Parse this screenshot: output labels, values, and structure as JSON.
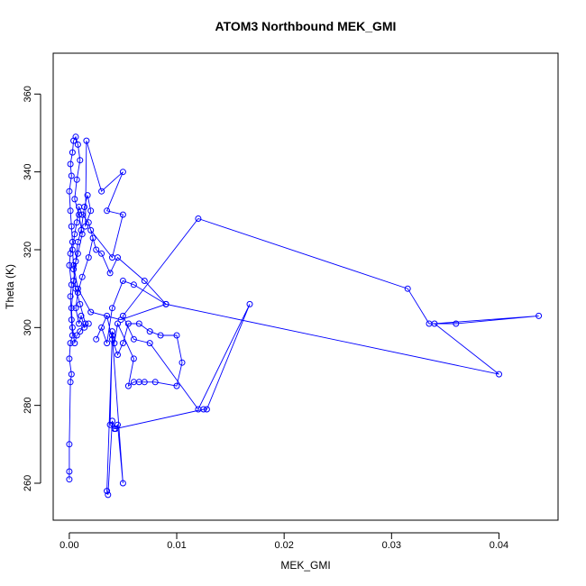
{
  "chart_data": {
    "type": "scatter",
    "title": "ATOM3 Northbound MEK_GMI",
    "xlabel": "MEK_GMI",
    "ylabel": "Theta (K)",
    "xlim": [
      -0.0015,
      0.0455
    ],
    "ylim": [
      250.5,
      370.5
    ],
    "x_ticks": [
      0.0,
      0.01,
      0.02,
      0.03,
      0.04
    ],
    "x_tick_labels": [
      "0.00",
      "0.01",
      "0.02",
      "0.03",
      "0.04"
    ],
    "y_ticks": [
      260,
      280,
      300,
      320,
      340,
      360
    ],
    "y_tick_labels": [
      "260",
      "280",
      "300",
      "320",
      "340",
      "360"
    ],
    "grid": false,
    "legend": "none",
    "marker": "open-circle",
    "connected": true,
    "color": "#0000ff",
    "series": [
      {
        "points": [
          [
            0.0,
            261
          ],
          [
            0.0,
            263
          ],
          [
            0.0,
            270
          ],
          [
            0.0001,
            286
          ],
          [
            0.0002,
            288
          ],
          [
            0.0,
            292
          ],
          [
            0.0001,
            296
          ],
          [
            0.0003,
            298
          ],
          [
            0.0002,
            302
          ],
          [
            0.0001,
            308
          ],
          [
            0.0002,
            311
          ],
          [
            0.0,
            316
          ],
          [
            0.0001,
            319
          ],
          [
            0.0003,
            322
          ],
          [
            0.0002,
            326
          ],
          [
            0.0001,
            330
          ],
          [
            0.0,
            335
          ],
          [
            0.0002,
            339
          ],
          [
            0.0001,
            342
          ],
          [
            0.0003,
            345
          ],
          [
            0.0004,
            348
          ],
          [
            0.0006,
            349
          ],
          [
            0.0008,
            347
          ],
          [
            0.001,
            343
          ],
          [
            0.0007,
            338
          ],
          [
            0.0005,
            333
          ],
          [
            0.0009,
            329
          ],
          [
            0.0012,
            324
          ],
          [
            0.0008,
            319
          ],
          [
            0.0004,
            315
          ],
          [
            0.0006,
            310
          ],
          [
            0.001,
            306
          ],
          [
            0.0015,
            301
          ],
          [
            0.001,
            299
          ],
          [
            0.0007,
            298
          ],
          [
            0.0005,
            296
          ],
          [
            0.0003,
            300
          ],
          [
            0.0002,
            305
          ],
          [
            0.0004,
            312
          ],
          [
            0.0006,
            317
          ],
          [
            0.0008,
            322
          ],
          [
            0.0011,
            325
          ],
          [
            0.0014,
            331
          ],
          [
            0.0017,
            334
          ],
          [
            0.002,
            330
          ],
          [
            0.0015,
            326
          ],
          [
            0.0016,
            348
          ],
          [
            0.003,
            335
          ],
          [
            0.005,
            340
          ],
          [
            0.0035,
            330
          ],
          [
            0.005,
            329
          ],
          [
            0.004,
            318
          ],
          [
            0.002,
            325
          ],
          [
            0.0025,
            320
          ],
          [
            0.003,
            319
          ],
          [
            0.0038,
            314
          ],
          [
            0.0045,
            318
          ],
          [
            0.007,
            312
          ],
          [
            0.009,
            306
          ],
          [
            0.006,
            311
          ],
          [
            0.005,
            312
          ],
          [
            0.004,
            305
          ],
          [
            0.0035,
            296
          ],
          [
            0.003,
            300
          ],
          [
            0.0025,
            297
          ],
          [
            0.0035,
            303
          ],
          [
            0.004,
            297
          ],
          [
            0.0045,
            293
          ],
          [
            0.005,
            296
          ],
          [
            0.0055,
            301
          ],
          [
            0.0065,
            301
          ],
          [
            0.0075,
            299
          ],
          [
            0.0085,
            298
          ],
          [
            0.01,
            298
          ],
          [
            0.0105,
            291
          ],
          [
            0.01,
            285
          ],
          [
            0.008,
            286
          ],
          [
            0.007,
            286
          ],
          [
            0.0065,
            286
          ],
          [
            0.006,
            286
          ],
          [
            0.0055,
            285
          ],
          [
            0.006,
            292
          ],
          [
            0.0045,
            301
          ],
          [
            0.0042,
            296
          ],
          [
            0.004,
            299
          ],
          [
            0.0038,
            275
          ],
          [
            0.0042,
            274
          ],
          [
            0.0045,
            275
          ],
          [
            0.005,
            260
          ],
          [
            0.004,
            298
          ],
          [
            0.0035,
            258
          ],
          [
            0.0036,
            257
          ],
          [
            0.004,
            276
          ],
          [
            0.0043,
            274
          ],
          [
            0.0125,
            279
          ],
          [
            0.0128,
            279
          ],
          [
            0.0168,
            306
          ],
          [
            0.012,
            279
          ],
          [
            0.0075,
            296
          ],
          [
            0.006,
            297
          ],
          [
            0.005,
            303
          ],
          [
            0.012,
            328
          ],
          [
            0.0315,
            310
          ],
          [
            0.0335,
            301
          ],
          [
            0.036,
            301
          ],
          [
            0.0437,
            303
          ],
          [
            0.034,
            301
          ],
          [
            0.04,
            288
          ],
          [
            0.009,
            306
          ],
          [
            0.0048,
            302
          ],
          [
            0.002,
            304
          ],
          [
            0.0008,
            310
          ],
          [
            0.0004,
            316
          ],
          [
            0.0003,
            320
          ],
          [
            0.0005,
            324
          ],
          [
            0.0007,
            327
          ],
          [
            0.0009,
            331
          ],
          [
            0.0012,
            329
          ],
          [
            0.0018,
            327
          ],
          [
            0.0022,
            323
          ],
          [
            0.0018,
            318
          ],
          [
            0.0012,
            313
          ],
          [
            0.0008,
            309
          ],
          [
            0.0006,
            305
          ],
          [
            0.0009,
            301
          ],
          [
            0.0011,
            303
          ],
          [
            0.0014,
            300
          ],
          [
            0.0018,
            301
          ]
        ]
      }
    ]
  }
}
